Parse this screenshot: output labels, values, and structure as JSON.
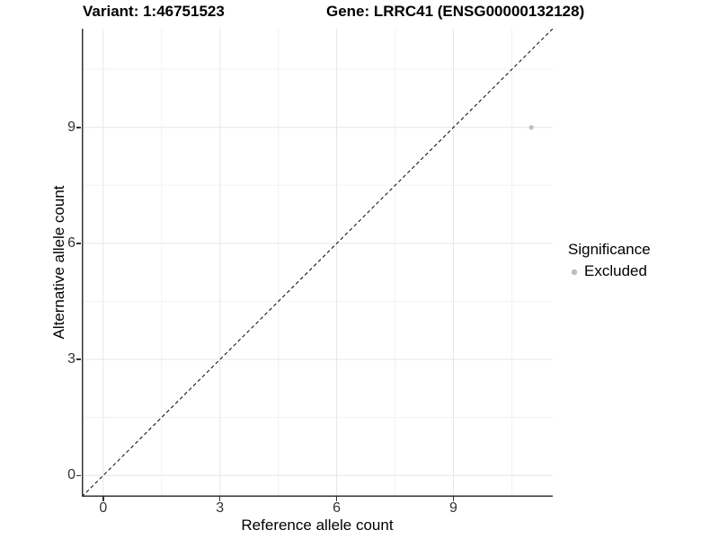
{
  "figure": {
    "title_left": "Variant: 1:46751523",
    "title_right": "Gene: LRRC41 (ENSG00000132128)"
  },
  "chart_data": {
    "type": "scatter",
    "title": "Variant: 1:46751523  /  Gene: LRRC41 (ENSG00000132128)",
    "xlabel": "Reference allele count",
    "ylabel": "Alternative allele count",
    "x_ticks": [
      "0",
      "3",
      "6",
      "9"
    ],
    "y_ticks": [
      "0",
      "3",
      "6",
      "9"
    ],
    "x_tick_values": [
      0,
      3,
      6,
      9
    ],
    "y_tick_values": [
      0,
      3,
      6,
      9
    ],
    "xlim": [
      -0.55,
      11.55
    ],
    "ylim": [
      -0.55,
      11.55
    ],
    "grid": "major+minor, light gray on white",
    "points": [
      {
        "x": 11,
        "y": 9,
        "significance": "Excluded"
      }
    ],
    "point_radius_px": 2.6,
    "reference_line": {
      "type": "identity y=x",
      "style": "dashed",
      "color": "#000000"
    },
    "legend": {
      "title": "Significance",
      "position": "right",
      "entries": [
        {
          "label": "Excluded",
          "color": "#bebebe"
        }
      ]
    }
  },
  "colors": {
    "background": "#ffffff",
    "axis_line": "#333333",
    "tick_label": "#333333",
    "grid_major": "#e6e6e6",
    "grid_minor": "#f2f2f2",
    "point": "#bebebe",
    "text": "#000000"
  }
}
